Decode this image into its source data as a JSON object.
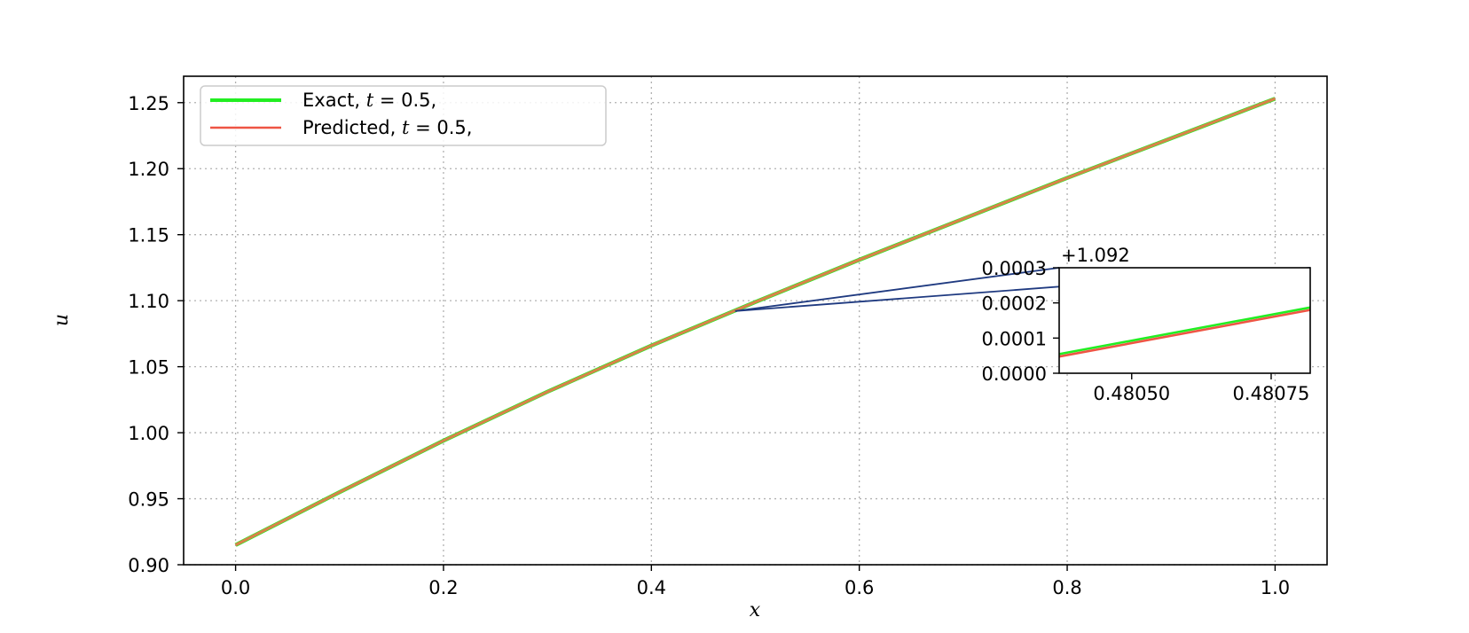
{
  "chart_data": {
    "type": "line",
    "xlabel": "x",
    "ylabel": "u",
    "xlim": [
      -0.05,
      1.05
    ],
    "ylim": [
      0.9,
      1.27
    ],
    "x_ticks": [
      0.0,
      0.2,
      0.4,
      0.6,
      0.8,
      1.0
    ],
    "x_tick_labels": [
      "0.0",
      "0.2",
      "0.4",
      "0.6",
      "0.8",
      "1.0"
    ],
    "y_ticks": [
      0.9,
      0.95,
      1.0,
      1.05,
      1.1,
      1.15,
      1.2,
      1.25
    ],
    "y_tick_labels": [
      "0.90",
      "0.95",
      "1.00",
      "1.05",
      "1.10",
      "1.15",
      "1.20",
      "1.25"
    ],
    "grid": true,
    "legend_position": "top-left",
    "series": [
      {
        "name": "Exact, t = 0.5,",
        "legend_parts": [
          "Exact, ",
          "t",
          " = 0.5,"
        ],
        "color": "#22ee22",
        "x": [
          0.0,
          0.1,
          0.2,
          0.3,
          0.4,
          0.5,
          0.6,
          0.7,
          0.8,
          0.9,
          1.0
        ],
        "y": [
          0.915,
          0.955,
          0.994,
          1.031,
          1.066,
          1.099,
          1.131,
          1.162,
          1.193,
          1.223,
          1.253
        ]
      },
      {
        "name": "Predicted, t = 0.5,",
        "legend_parts": [
          "Predicted, ",
          "t",
          " = 0.5,"
        ],
        "color": "#ee5544",
        "x": [
          0.0,
          0.1,
          0.2,
          0.3,
          0.4,
          0.5,
          0.6,
          0.7,
          0.8,
          0.9,
          1.0
        ],
        "y": [
          0.915,
          0.955,
          0.994,
          1.031,
          1.066,
          1.099,
          1.131,
          1.162,
          1.193,
          1.223,
          1.253
        ]
      }
    ],
    "combined_line_color": "#d9824a",
    "inset": {
      "offset_label": "+1.092",
      "xlim": [
        0.48037,
        0.48082
      ],
      "ylim": [
        0.0,
        0.0003
      ],
      "x_ticks": [
        0.4805,
        0.48075
      ],
      "x_tick_labels": [
        "0.48050",
        "0.48075"
      ],
      "y_ticks": [
        0.0,
        0.0001,
        0.0002,
        0.0003
      ],
      "y_tick_labels": [
        "0.0000",
        "0.0001",
        "0.0002",
        "0.0003"
      ],
      "zoom_color": "#1f3a80",
      "series": [
        {
          "color": "#22ee22",
          "x": [
            0.48037,
            0.48082
          ],
          "y": [
            5.45e-05,
            0.000187
          ]
        },
        {
          "color": "#ee5544",
          "x": [
            0.48037,
            0.48082
          ],
          "y": [
            4.75e-05,
            0.00018
          ]
        }
      ]
    }
  }
}
